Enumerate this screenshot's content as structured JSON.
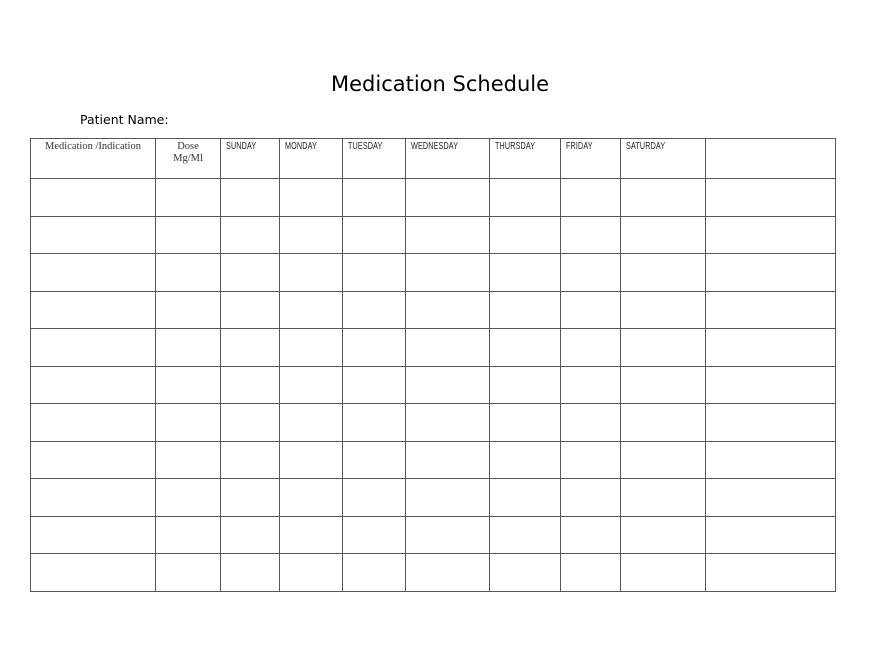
{
  "title": "Medication Schedule",
  "patient_label": "Patient Name:",
  "table": {
    "headers": {
      "medication": "Medication /Indication",
      "dose_line1": "Dose",
      "dose_line2": "Mg/Ml",
      "days": [
        "SUNDAY",
        "MONDAY",
        "TUESDAY",
        "WEDNESDAY",
        "THURSDAY",
        "FRIDAY",
        "SATURDAY"
      ],
      "extra": ""
    },
    "row_count": 11
  }
}
